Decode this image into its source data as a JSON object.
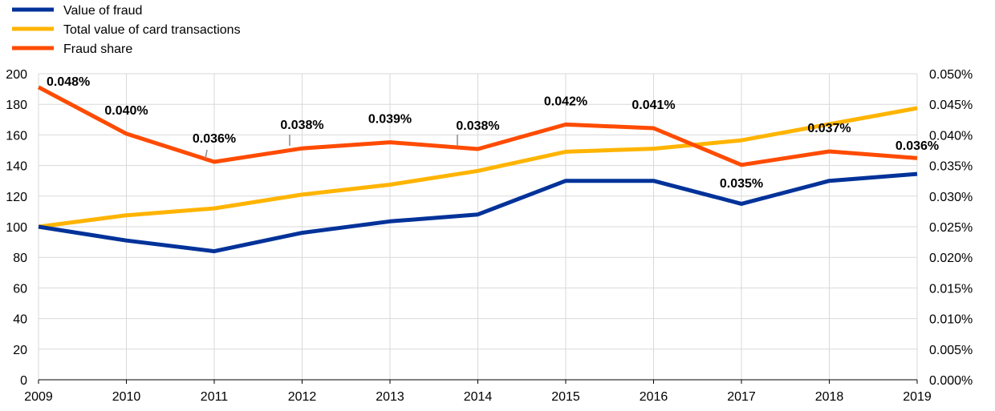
{
  "chart_data": {
    "type": "line",
    "categories": [
      "2009",
      "2010",
      "2011",
      "2012",
      "2013",
      "2014",
      "2015",
      "2016",
      "2017",
      "2018",
      "2019"
    ],
    "series": [
      {
        "name": "Value of fraud",
        "axis": "left",
        "color": "#003299",
        "values": [
          100,
          91,
          84,
          96,
          103.5,
          108,
          130,
          130,
          115,
          130,
          134.5
        ]
      },
      {
        "name": "Total value of card transactions",
        "axis": "left",
        "color": "#FFB400",
        "values": [
          100,
          107.5,
          112,
          121,
          127.5,
          136.5,
          149,
          151,
          156.5,
          167,
          177.5
        ]
      },
      {
        "name": "Fraud share",
        "axis": "right",
        "color": "#FF4B00",
        "values": [
          0.0478,
          0.0402,
          0.0356,
          0.0378,
          0.0388,
          0.0377,
          0.0417,
          0.0411,
          0.0351,
          0.0373,
          0.0362
        ],
        "labels": [
          "0.048%",
          "0.040%",
          "0.036%",
          "0.038%",
          "0.039%",
          "0.038%",
          "0.042%",
          "0.041%",
          "0.035%",
          "0.037%",
          "0.036%"
        ]
      }
    ],
    "y_left": {
      "min": 0,
      "max": 200,
      "ticks": [
        "0",
        "20",
        "40",
        "60",
        "80",
        "100",
        "120",
        "140",
        "160",
        "180",
        "200"
      ]
    },
    "y_right": {
      "min": 0,
      "max": 0.05,
      "ticks": [
        "0.000%",
        "0.005%",
        "0.010%",
        "0.015%",
        "0.020%",
        "0.025%",
        "0.030%",
        "0.035%",
        "0.040%",
        "0.045%",
        "0.050%"
      ]
    },
    "grid": true,
    "legend": "top-left"
  }
}
